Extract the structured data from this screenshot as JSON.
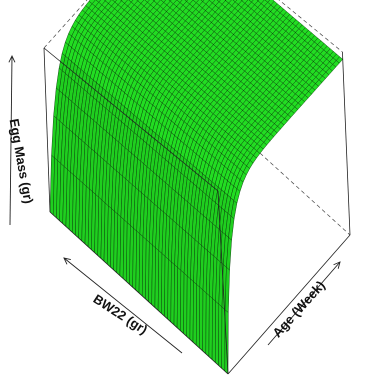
{
  "chart_data": {
    "type": "surface",
    "title": "",
    "axes": {
      "x": {
        "label": "BW22 (gr)"
      },
      "y": {
        "label": "Age (Week)"
      },
      "z": {
        "label": "Egg Mass (gr)"
      }
    },
    "grid": false,
    "surface": {
      "description_shape": "plateau rising steeply from zero along Age, nearly flat along BW22",
      "age_steps": 36,
      "bw_steps": 56,
      "z_range": [
        0,
        1
      ],
      "face_color": "#22dd22",
      "edge_color": "#0a3d0a"
    }
  }
}
